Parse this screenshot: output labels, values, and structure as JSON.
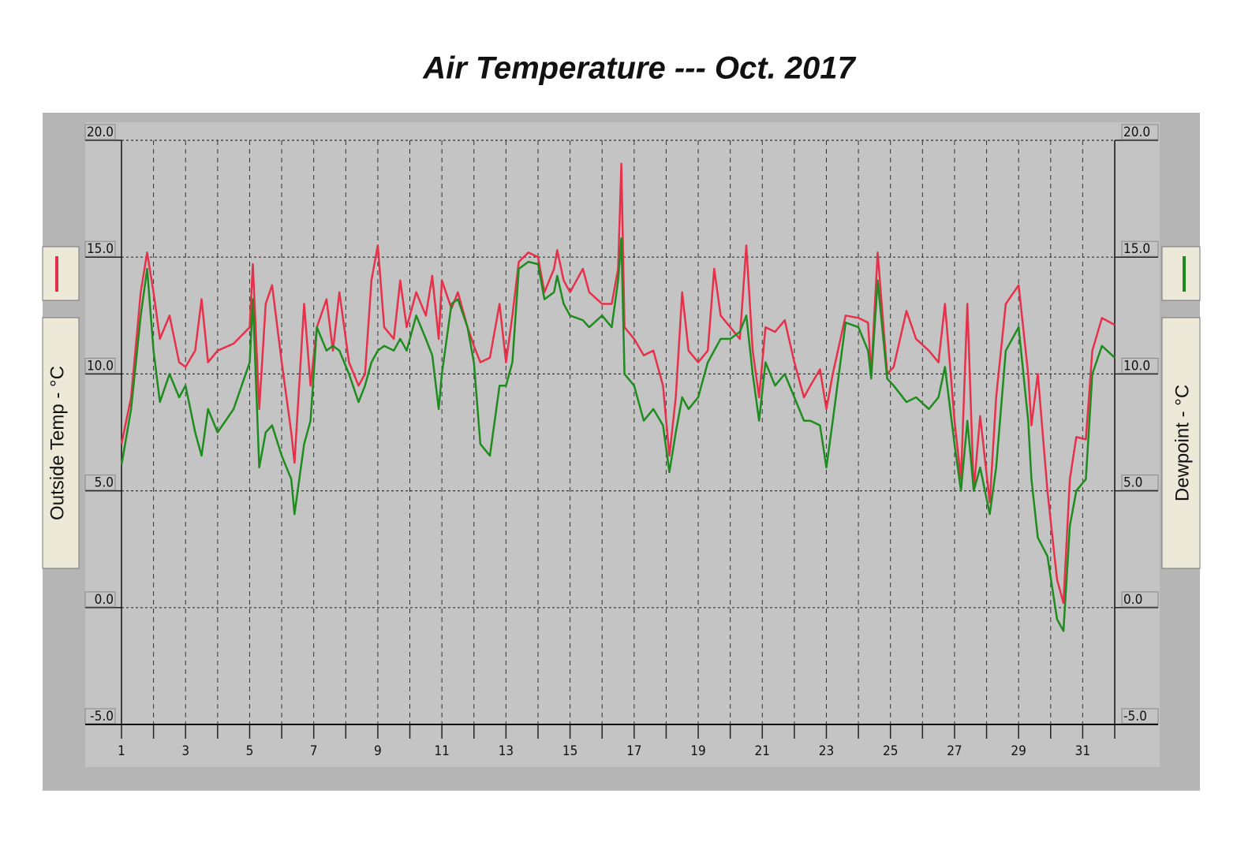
{
  "chart_data": {
    "type": "line",
    "title": "Air Temperature ---  Oct.  2017",
    "x": [
      1.0,
      1.3,
      1.6,
      1.8,
      2.0,
      2.2,
      2.5,
      2.8,
      3.0,
      3.3,
      3.5,
      3.7,
      4.0,
      4.5,
      5.0,
      5.1,
      5.3,
      5.5,
      5.7,
      6.0,
      6.3,
      6.4,
      6.7,
      6.9,
      7.1,
      7.4,
      7.6,
      7.8,
      8.1,
      8.4,
      8.6,
      8.8,
      9.0,
      9.2,
      9.5,
      9.7,
      9.9,
      10.2,
      10.5,
      10.7,
      10.9,
      11.0,
      11.3,
      11.5,
      11.8,
      12.0,
      12.2,
      12.5,
      12.8,
      13.0,
      13.2,
      13.4,
      13.7,
      14.0,
      14.2,
      14.5,
      14.6,
      14.8,
      15.0,
      15.4,
      15.6,
      16.0,
      16.3,
      16.5,
      16.6,
      16.7,
      17.0,
      17.3,
      17.6,
      17.9,
      18.1,
      18.3,
      18.5,
      18.7,
      19.0,
      19.3,
      19.5,
      19.7,
      20.0,
      20.3,
      20.5,
      20.7,
      20.9,
      21.1,
      21.4,
      21.7,
      22.0,
      22.3,
      22.5,
      22.8,
      23.0,
      23.2,
      23.6,
      24.0,
      24.3,
      24.4,
      24.6,
      24.9,
      25.1,
      25.5,
      25.8,
      26.2,
      26.5,
      26.7,
      27.0,
      27.2,
      27.4,
      27.6,
      27.8,
      28.1,
      28.3,
      28.6,
      29.0,
      29.3,
      29.4,
      29.6,
      29.9,
      30.2,
      30.4,
      30.6,
      30.8,
      31.1,
      31.3,
      31.6,
      32.0
    ],
    "series": [
      {
        "name": "Outside Temp - °C",
        "color": "#e8304a",
        "values": [
          7.0,
          9,
          13.5,
          15.2,
          13.5,
          11.5,
          12.5,
          10.5,
          10.3,
          11,
          13.2,
          10.5,
          11,
          11.3,
          12,
          14.7,
          8.5,
          13,
          13.8,
          10.5,
          7.5,
          6.2,
          13,
          9.5,
          12,
          13.2,
          11,
          13.5,
          10.5,
          9.5,
          10,
          14,
          15.5,
          12,
          11.5,
          14,
          12,
          13.5,
          12.5,
          14.2,
          11.5,
          14,
          12.8,
          13.5,
          12,
          11.2,
          10.5,
          10.7,
          13,
          10.5,
          12.5,
          14.8,
          15.2,
          15,
          13.5,
          14.5,
          15.3,
          14,
          13.5,
          14.5,
          13.5,
          13,
          13,
          14.5,
          19,
          12,
          11.5,
          10.8,
          11,
          9.5,
          6.5,
          9,
          13.5,
          11,
          10.5,
          11,
          14.5,
          12.5,
          12,
          11.5,
          15.5,
          11,
          9,
          12,
          11.8,
          12.3,
          10.5,
          9,
          9.5,
          10.2,
          8.5,
          10,
          12.5,
          12.4,
          12.2,
          10,
          15.2,
          10,
          10.3,
          12.7,
          11.5,
          11,
          10.5,
          13,
          8,
          5.5,
          13,
          5,
          8.2,
          4.5,
          9,
          13,
          13.8,
          10,
          7.8,
          10,
          5,
          1.2,
          0.2,
          5.5,
          7.3,
          7.2,
          11,
          12.4,
          12.1
        ]
      },
      {
        "name": "Dewpoint - °C",
        "color": "#1e8c1e",
        "axis": "y2",
        "values": [
          6.1,
          8.5,
          12.5,
          14.5,
          11,
          8.8,
          10,
          9,
          9.5,
          7.5,
          6.5,
          8.5,
          7.5,
          8.5,
          10.5,
          13.2,
          6,
          7.5,
          7.8,
          6.5,
          5.5,
          4.0,
          7,
          8,
          12,
          11,
          11.2,
          11,
          10,
          8.8,
          9.5,
          10.5,
          11,
          11.2,
          11,
          11.5,
          11,
          12.5,
          11.5,
          10.8,
          8.5,
          10,
          13,
          13.2,
          12,
          10.5,
          7,
          6.5,
          9.5,
          9.5,
          10.5,
          14.5,
          14.8,
          14.7,
          13.2,
          13.5,
          14.2,
          13,
          12.5,
          12.3,
          12,
          12.5,
          12,
          14,
          15.8,
          10,
          9.5,
          8,
          8.5,
          7.8,
          5.8,
          7.5,
          9,
          8.5,
          9,
          10.5,
          11,
          11.5,
          11.5,
          11.8,
          12.5,
          10,
          8,
          10.5,
          9.5,
          10,
          9,
          8,
          8,
          7.8,
          6,
          8,
          12.2,
          12,
          11,
          9.8,
          14,
          9.8,
          9.5,
          8.8,
          9,
          8.5,
          9,
          10.3,
          7,
          5,
          8,
          5,
          6,
          4,
          6,
          11,
          12,
          8,
          5.5,
          3,
          2.2,
          -0.5,
          -1,
          3.5,
          5,
          5.5,
          10,
          11.2,
          10.7
        ]
      }
    ],
    "xlim": [
      1,
      32
    ],
    "xticks": [
      1,
      3,
      5,
      7,
      9,
      11,
      13,
      15,
      17,
      19,
      21,
      23,
      25,
      27,
      29,
      31
    ],
    "xminor": [
      2,
      4,
      6,
      8,
      10,
      12,
      14,
      16,
      18,
      20,
      22,
      24,
      26,
      28,
      30,
      32
    ],
    "ylim": [
      -5,
      20
    ],
    "yticks": [
      {
        "value": -5,
        "label": "-5.0"
      },
      {
        "value": 0,
        "label": "0.0"
      },
      {
        "value": 5,
        "label": "5.0"
      },
      {
        "value": 10,
        "label": "10.0"
      },
      {
        "value": 15,
        "label": "15.0"
      },
      {
        "value": 20,
        "label": "20.0"
      }
    ],
    "y2lim": [
      -5,
      20
    ],
    "y2ticks": [
      {
        "value": -5,
        "label": "-5.0"
      },
      {
        "value": 0,
        "label": "0.0"
      },
      {
        "value": 5,
        "label": "5.0"
      },
      {
        "value": 10,
        "label": "10.0"
      },
      {
        "value": 15,
        "label": "15.0"
      },
      {
        "value": 20,
        "label": "20.0"
      }
    ],
    "grid": true
  }
}
